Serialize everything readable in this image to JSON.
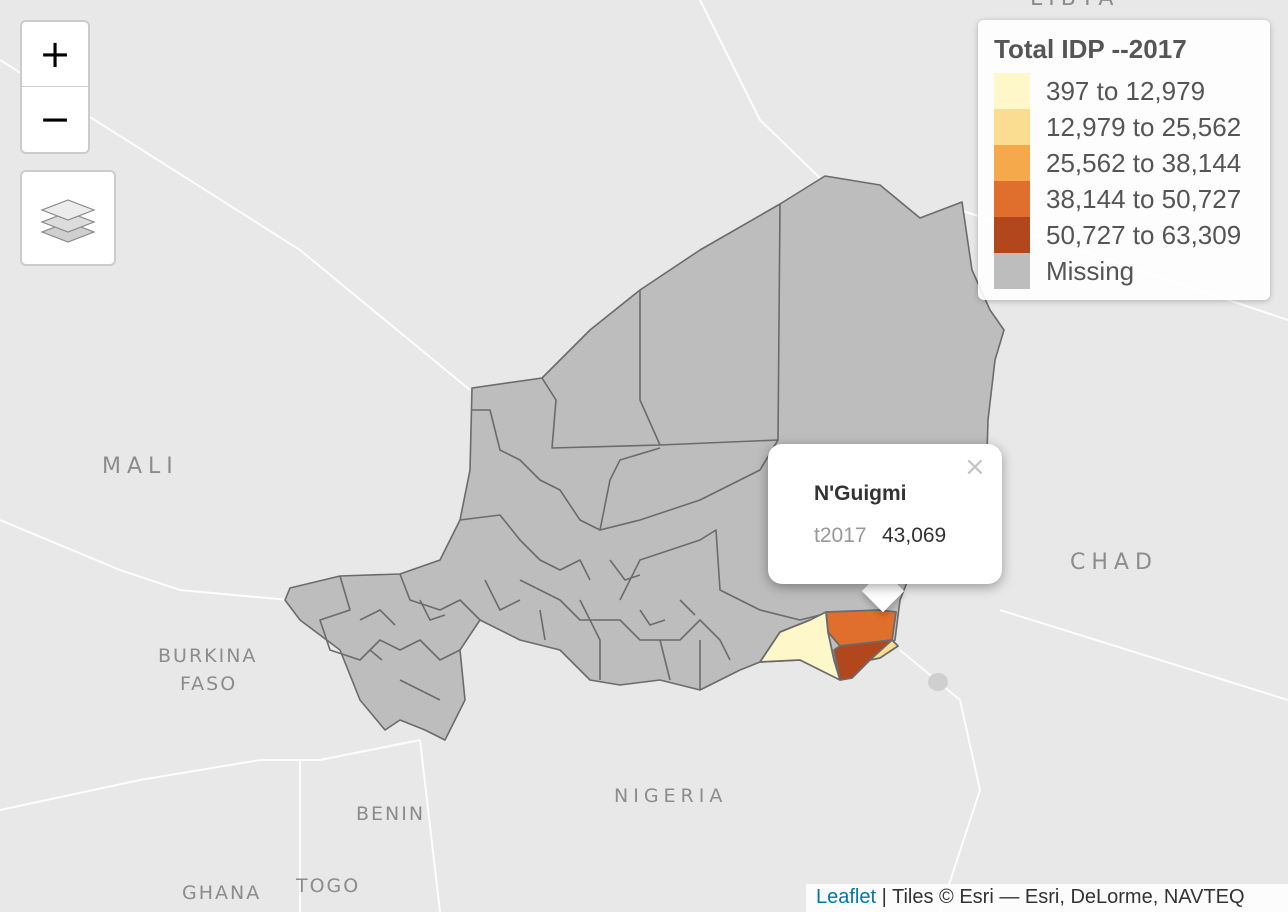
{
  "map": {
    "country_labels": {
      "libya": "LIBYA",
      "mali": "MALI",
      "chad": "CHAD",
      "burkina_line1": "BURKINA",
      "burkina_line2": "FASO",
      "nigeria": "NIGERIA",
      "benin": "BENIN",
      "togo": "TOGO",
      "ghana": "GHANA"
    },
    "colors": {
      "missing": "#bdbdbd",
      "border": "#6b6b6b"
    }
  },
  "controls": {
    "zoom_in": "+",
    "zoom_out": "−",
    "layers_icon": "layers-icon"
  },
  "legend": {
    "title": "Total IDP --2017",
    "items": [
      {
        "label": "397 to 12,979",
        "color": "#fef7c9"
      },
      {
        "label": "12,979 to 25,562",
        "color": "#fbdd91"
      },
      {
        "label": "25,562 to 38,144",
        "color": "#f5a94b"
      },
      {
        "label": "38,144 to 50,727",
        "color": "#e06e2c"
      },
      {
        "label": "50,727 to 63,309",
        "color": "#b2461c"
      },
      {
        "label": "Missing",
        "color": "#bdbdbd"
      }
    ]
  },
  "popup": {
    "close": "×",
    "title": "N'Guigmi",
    "key": "t2017",
    "value": "43,069"
  },
  "attribution": {
    "link": "Leaflet",
    "text": " | Tiles © Esri — Esri, DeLorme, NAVTEQ"
  }
}
